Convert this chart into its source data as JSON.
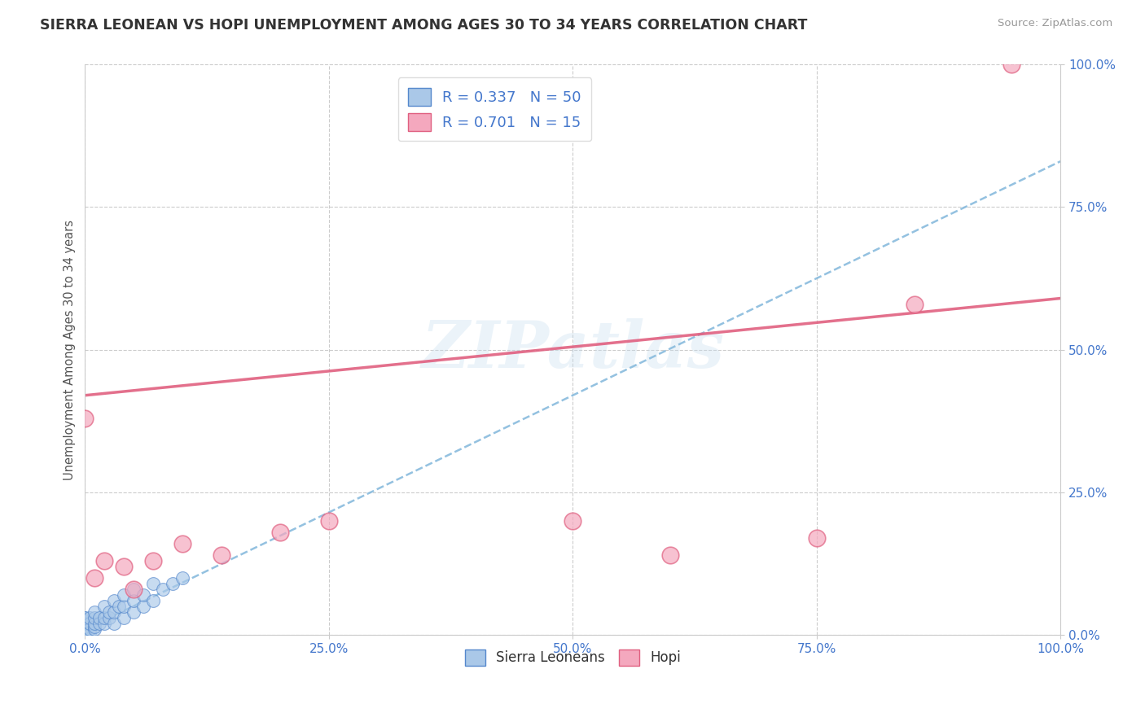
{
  "title": "SIERRA LEONEAN VS HOPI UNEMPLOYMENT AMONG AGES 30 TO 34 YEARS CORRELATION CHART",
  "source": "Source: ZipAtlas.com",
  "ylabel": "Unemployment Among Ages 30 to 34 years",
  "xlim": [
    0,
    1.0
  ],
  "ylim": [
    0,
    1.0
  ],
  "sierra_r": 0.337,
  "sierra_n": 50,
  "hopi_r": 0.701,
  "hopi_n": 15,
  "sierra_color": "#aac8e8",
  "hopi_color": "#f4a8be",
  "sierra_edge": "#5588cc",
  "hopi_edge": "#e06080",
  "trend_sierra_color": "#88bbdd",
  "trend_hopi_color": "#e06080",
  "watermark": "ZIPatlas",
  "background_color": "#ffffff",
  "sierra_x": [
    0.0,
    0.0,
    0.0,
    0.0,
    0.0,
    0.0,
    0.0,
    0.0,
    0.0,
    0.0,
    0.0,
    0.0,
    0.0,
    0.0,
    0.0,
    0.0,
    0.0,
    0.005,
    0.005,
    0.005,
    0.005,
    0.01,
    0.01,
    0.01,
    0.01,
    0.01,
    0.015,
    0.015,
    0.02,
    0.02,
    0.02,
    0.025,
    0.025,
    0.03,
    0.03,
    0.03,
    0.035,
    0.04,
    0.04,
    0.04,
    0.05,
    0.05,
    0.05,
    0.06,
    0.06,
    0.07,
    0.07,
    0.08,
    0.09,
    0.1
  ],
  "sierra_y": [
    0.0,
    0.0,
    0.0,
    0.0,
    0.0,
    0.0,
    0.005,
    0.005,
    0.01,
    0.01,
    0.01,
    0.015,
    0.02,
    0.02,
    0.025,
    0.03,
    0.03,
    0.005,
    0.01,
    0.02,
    0.03,
    0.01,
    0.015,
    0.02,
    0.03,
    0.04,
    0.02,
    0.03,
    0.02,
    0.03,
    0.05,
    0.03,
    0.04,
    0.02,
    0.04,
    0.06,
    0.05,
    0.03,
    0.05,
    0.07,
    0.04,
    0.06,
    0.08,
    0.05,
    0.07,
    0.06,
    0.09,
    0.08,
    0.09,
    0.1
  ],
  "hopi_x": [
    0.0,
    0.01,
    0.02,
    0.04,
    0.05,
    0.07,
    0.1,
    0.14,
    0.2,
    0.25,
    0.5,
    0.6,
    0.75,
    0.85,
    0.95
  ],
  "hopi_y": [
    0.38,
    0.1,
    0.13,
    0.12,
    0.08,
    0.13,
    0.16,
    0.14,
    0.18,
    0.2,
    0.2,
    0.14,
    0.17,
    0.58,
    1.0
  ],
  "hopi_trend_x0": 0.0,
  "hopi_trend_y0": 0.42,
  "hopi_trend_x1": 1.0,
  "hopi_trend_y1": 0.59,
  "sierra_trend_x0": 0.0,
  "sierra_trend_y0": 0.01,
  "sierra_trend_x1": 1.0,
  "sierra_trend_y1": 0.83
}
